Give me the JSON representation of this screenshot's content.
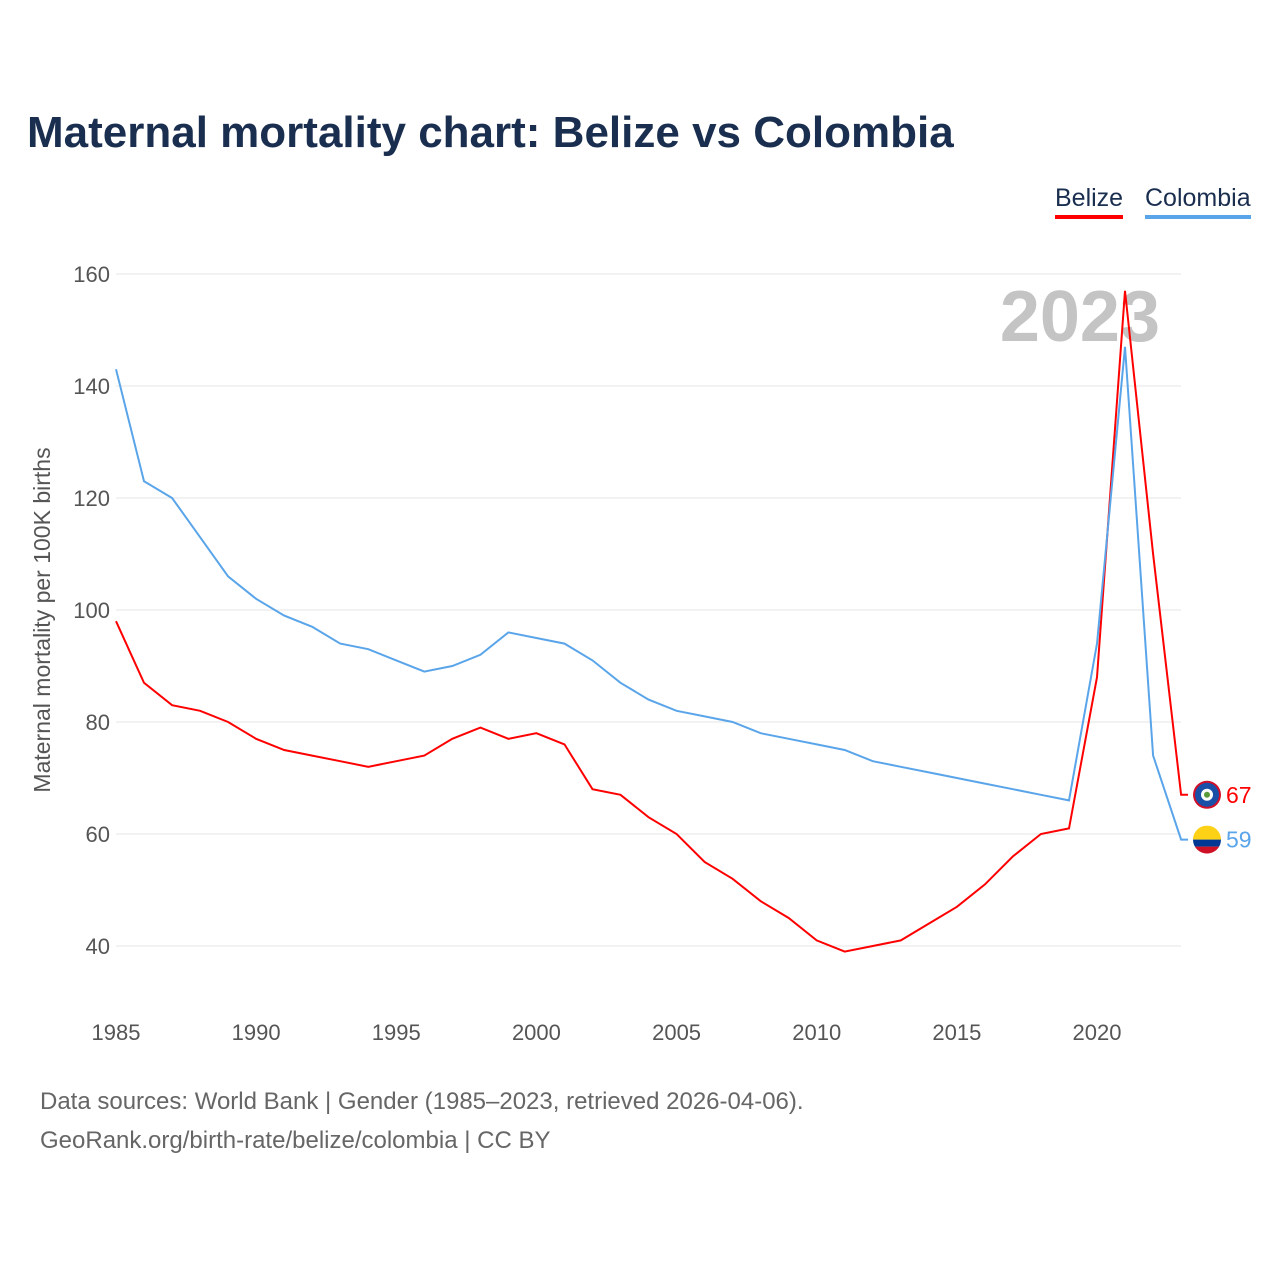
{
  "title": "Maternal mortality chart: Belize vs Colombia",
  "footer": {
    "line1": "Data sources: World Bank | Gender (1985–2023, retrieved 2026-04-06).",
    "line2": "GeoRank.org/birth-rate/belize/colombia | CC BY"
  },
  "chart_data": {
    "type": "line",
    "title": "Maternal mortality chart: Belize vs Colombia",
    "ylabel": "Maternal mortality per 100K births",
    "xlabel": "",
    "year_label": "2023",
    "ylim": [
      30,
      165
    ],
    "xlim": [
      1985,
      2023
    ],
    "yticks": [
      40,
      60,
      80,
      100,
      120,
      140,
      160
    ],
    "xticks": [
      1985,
      1990,
      1995,
      2000,
      2005,
      2010,
      2015,
      2020
    ],
    "grid": true,
    "legend_position": "top-right",
    "x": [
      1985,
      1986,
      1987,
      1988,
      1989,
      1990,
      1991,
      1992,
      1993,
      1994,
      1995,
      1996,
      1997,
      1998,
      1999,
      2000,
      2001,
      2002,
      2003,
      2004,
      2005,
      2006,
      2007,
      2008,
      2009,
      2010,
      2011,
      2012,
      2013,
      2014,
      2015,
      2016,
      2017,
      2018,
      2019,
      2020,
      2021,
      2022,
      2023
    ],
    "series": [
      {
        "name": "Belize",
        "color": "#ff0000",
        "end_label": "67",
        "values": [
          98,
          87,
          83,
          82,
          80,
          77,
          75,
          74,
          73,
          72,
          73,
          74,
          77,
          79,
          77,
          78,
          76,
          68,
          67,
          63,
          60,
          55,
          52,
          48,
          45,
          41,
          39,
          40,
          41,
          44,
          47,
          51,
          56,
          60,
          61,
          88,
          157,
          110,
          67
        ]
      },
      {
        "name": "Colombia",
        "color": "#5aa5ea",
        "end_label": "59",
        "values": [
          143,
          123,
          120,
          113,
          106,
          102,
          99,
          97,
          94,
          93,
          91,
          89,
          90,
          92,
          96,
          95,
          94,
          91,
          87,
          84,
          82,
          81,
          80,
          78,
          77,
          76,
          75,
          73,
          72,
          71,
          70,
          69,
          68,
          67,
          66,
          94,
          147,
          74,
          59
        ]
      }
    ]
  }
}
